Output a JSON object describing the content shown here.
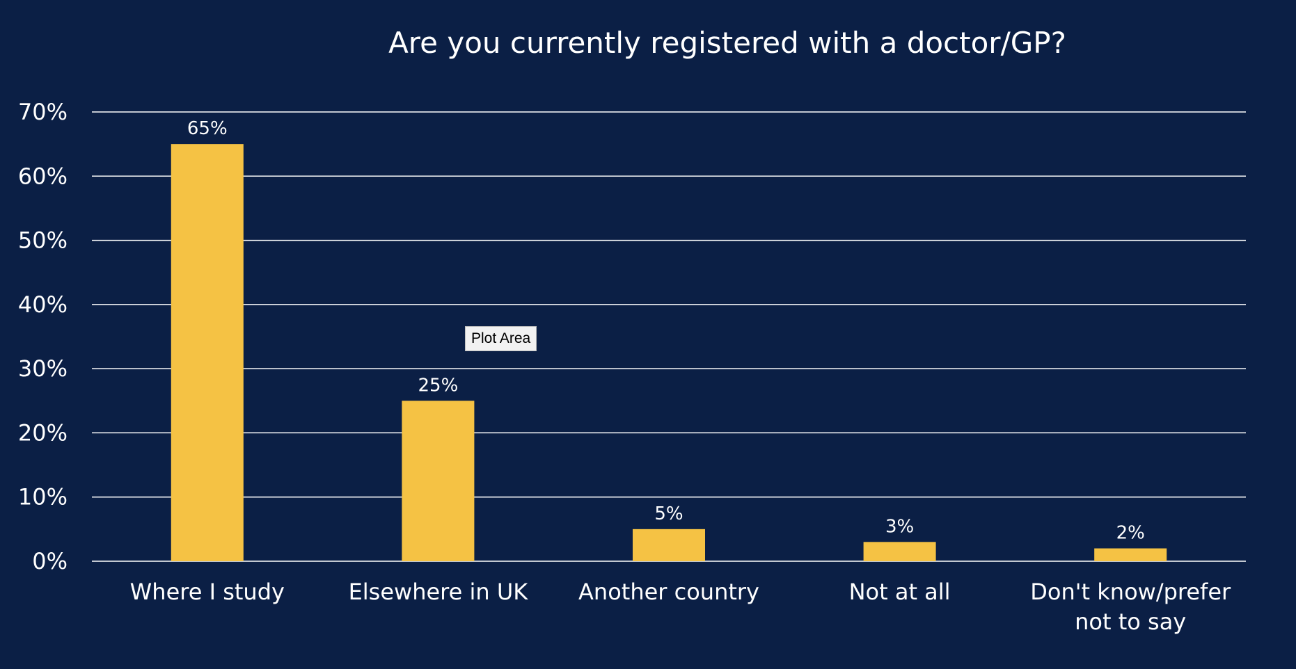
{
  "chart_data": {
    "type": "bar",
    "title": "Are you currently registered with a doctor/GP?",
    "categories": [
      [
        "Where I study"
      ],
      [
        "Elsewhere in UK"
      ],
      [
        "Another country"
      ],
      [
        "Not at all"
      ],
      [
        "Don't know/prefer",
        "not to say"
      ]
    ],
    "values": [
      65,
      25,
      5,
      3,
      2
    ],
    "data_labels": [
      "65%",
      "25%",
      "5%",
      "3%",
      "2%"
    ],
    "y_ticks": [
      0,
      10,
      20,
      30,
      40,
      50,
      60,
      70
    ],
    "y_tick_labels": [
      "0%",
      "10%",
      "20%",
      "30%",
      "40%",
      "50%",
      "60%",
      "70%"
    ],
    "ylim": [
      0,
      70
    ],
    "grid": true,
    "legend": "none",
    "colors": {
      "background": "#0b1f45",
      "bar": "#f5c244",
      "text": "#ffffff",
      "grid": "#ffffff"
    }
  },
  "tooltip": {
    "text": "Plot Area"
  }
}
